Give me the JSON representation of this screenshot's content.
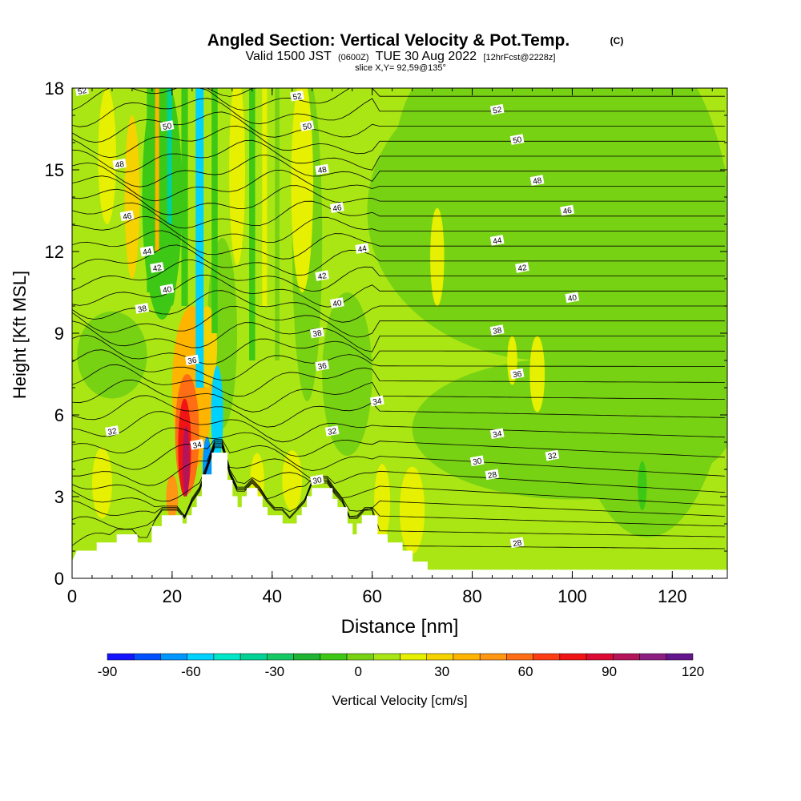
{
  "chart_data": {
    "type": "heatmap",
    "title": "Angled Section: Vertical Velocity & Pot.Temp.",
    "title_mark": "(C)",
    "subtitle_parts": [
      "Valid 1500 JST",
      "(0600Z)",
      "TUE 30 Aug 2022",
      "[12hrFcst@2228z]"
    ],
    "slice_label": "slice X,Y= 92,59@135°",
    "xlabel": "Distance [nm]",
    "ylabel": "Height [Kft MSL]",
    "xlim": [
      0,
      131
    ],
    "ylim": [
      0,
      18
    ],
    "x_ticks": [
      "0",
      "20",
      "40",
      "60",
      "80",
      "100",
      "120"
    ],
    "y_ticks": [
      "0",
      "3",
      "6",
      "9",
      "12",
      "15",
      "18"
    ],
    "colorbar": {
      "label": "Vertical Velocity [cm/s]",
      "min": -90,
      "max": 120,
      "tick_labels": [
        "-90",
        "-60",
        "-30",
        "0",
        "30",
        "60",
        "90",
        "120"
      ],
      "colors": [
        "#1414ff",
        "#0050ff",
        "#0096ff",
        "#00d2ff",
        "#00e6c8",
        "#00d296",
        "#14c864",
        "#1eb432",
        "#3cc814",
        "#78d214",
        "#aae614",
        "#e6f000",
        "#f5d200",
        "#ffb400",
        "#ff9614",
        "#ff6e14",
        "#ff3c14",
        "#f01414",
        "#dc0a32",
        "#b4145a",
        "#8c1e82",
        "#64148c"
      ]
    },
    "terrain": [
      [
        0,
        0.6
      ],
      [
        1,
        1.0
      ],
      [
        5,
        1.0
      ],
      [
        5,
        1.3
      ],
      [
        9,
        1.3
      ],
      [
        9,
        1.6
      ],
      [
        13,
        1.6
      ],
      [
        13,
        1.3
      ],
      [
        16,
        1.3
      ],
      [
        16,
        1.9
      ],
      [
        18,
        1.9
      ],
      [
        18,
        2.3
      ],
      [
        22,
        2.3
      ],
      [
        22,
        2.0
      ],
      [
        23,
        2.0
      ],
      [
        23,
        2.3
      ],
      [
        24,
        2.3
      ],
      [
        24,
        2.6
      ],
      [
        25,
        2.6
      ],
      [
        25,
        3.0
      ],
      [
        26,
        3.0
      ],
      [
        26,
        3.8
      ],
      [
        28,
        3.8
      ],
      [
        28,
        4.6
      ],
      [
        31,
        4.6
      ],
      [
        31,
        3.6
      ],
      [
        32,
        3.6
      ],
      [
        32,
        3.0
      ],
      [
        33,
        3.0
      ],
      [
        33,
        2.6
      ],
      [
        34,
        2.6
      ],
      [
        34,
        3.0
      ],
      [
        35,
        3.0
      ],
      [
        35,
        3.3
      ],
      [
        37,
        3.3
      ],
      [
        37,
        3.0
      ],
      [
        38,
        3.0
      ],
      [
        38,
        2.6
      ],
      [
        39,
        2.6
      ],
      [
        39,
        2.3
      ],
      [
        42,
        2.3
      ],
      [
        42,
        2.0
      ],
      [
        45,
        2.0
      ],
      [
        45,
        2.3
      ],
      [
        46,
        2.3
      ],
      [
        46,
        2.6
      ],
      [
        47,
        2.6
      ],
      [
        47,
        3.0
      ],
      [
        48,
        3.0
      ],
      [
        48,
        3.3
      ],
      [
        52,
        3.3
      ],
      [
        52,
        2.9
      ],
      [
        53,
        2.9
      ],
      [
        53,
        2.6
      ],
      [
        55,
        2.6
      ],
      [
        55,
        2.0
      ],
      [
        56,
        2.0
      ],
      [
        56,
        1.6
      ],
      [
        57,
        1.6
      ],
      [
        57,
        2.0
      ],
      [
        58,
        2.0
      ],
      [
        58,
        2.3
      ],
      [
        61,
        2.3
      ],
      [
        61,
        1.6
      ],
      [
        63,
        1.6
      ],
      [
        63,
        1.3
      ],
      [
        66,
        1.3
      ],
      [
        66,
        1.0
      ],
      [
        68,
        1.0
      ],
      [
        68,
        0.6
      ],
      [
        71,
        0.6
      ],
      [
        71,
        0.3
      ],
      [
        131,
        0.3
      ],
      [
        131,
        0
      ],
      [
        0,
        0
      ]
    ],
    "theta_labels": [
      {
        "t": "52",
        "x": 2,
        "y": 17.9
      },
      {
        "t": "50",
        "x": 19,
        "y": 16.6
      },
      {
        "t": "48",
        "x": 9.5,
        "y": 15.2
      },
      {
        "t": "46",
        "x": 11,
        "y": 13.3
      },
      {
        "t": "44",
        "x": 15,
        "y": 12.0
      },
      {
        "t": "42",
        "x": 17,
        "y": 11.4
      },
      {
        "t": "40",
        "x": 19,
        "y": 10.6
      },
      {
        "t": "38",
        "x": 14,
        "y": 9.9
      },
      {
        "t": "36",
        "x": 24,
        "y": 8.0
      },
      {
        "t": "34",
        "x": 25,
        "y": 4.9
      },
      {
        "t": "32",
        "x": 8,
        "y": 5.4
      },
      {
        "t": "52",
        "x": 45,
        "y": 17.7
      },
      {
        "t": "50",
        "x": 47,
        "y": 16.6
      },
      {
        "t": "48",
        "x": 50,
        "y": 15.0
      },
      {
        "t": "46",
        "x": 53,
        "y": 13.6
      },
      {
        "t": "44",
        "x": 58,
        "y": 12.1
      },
      {
        "t": "42",
        "x": 50,
        "y": 11.1
      },
      {
        "t": "40",
        "x": 53,
        "y": 10.1
      },
      {
        "t": "38",
        "x": 49,
        "y": 9.0
      },
      {
        "t": "36",
        "x": 50,
        "y": 7.8
      },
      {
        "t": "34",
        "x": 61,
        "y": 6.5
      },
      {
        "t": "32",
        "x": 52,
        "y": 5.4
      },
      {
        "t": "30",
        "x": 49,
        "y": 3.6
      },
      {
        "t": "52",
        "x": 85,
        "y": 17.2
      },
      {
        "t": "50",
        "x": 89,
        "y": 16.1
      },
      {
        "t": "48",
        "x": 93,
        "y": 14.6
      },
      {
        "t": "46",
        "x": 99,
        "y": 13.5
      },
      {
        "t": "44",
        "x": 85,
        "y": 12.4
      },
      {
        "t": "42",
        "x": 90,
        "y": 11.4
      },
      {
        "t": "40",
        "x": 100,
        "y": 10.3
      },
      {
        "t": "38",
        "x": 85,
        "y": 9.1
      },
      {
        "t": "36",
        "x": 89,
        "y": 7.5
      },
      {
        "t": "34",
        "x": 85,
        "y": 5.3
      },
      {
        "t": "32",
        "x": 96,
        "y": 4.5
      },
      {
        "t": "30",
        "x": 81,
        "y": 4.3
      },
      {
        "t": "28",
        "x": 84,
        "y": 3.8
      },
      {
        "t": "28",
        "x": 89,
        "y": 1.3
      }
    ]
  },
  "colors": {
    "base_field": "#aae614",
    "green_band": "#78d214",
    "dark_green": "#3cc814",
    "yellow": "#e6f000",
    "contour_line": "#000000",
    "terrain_fill": "#ffffff"
  }
}
